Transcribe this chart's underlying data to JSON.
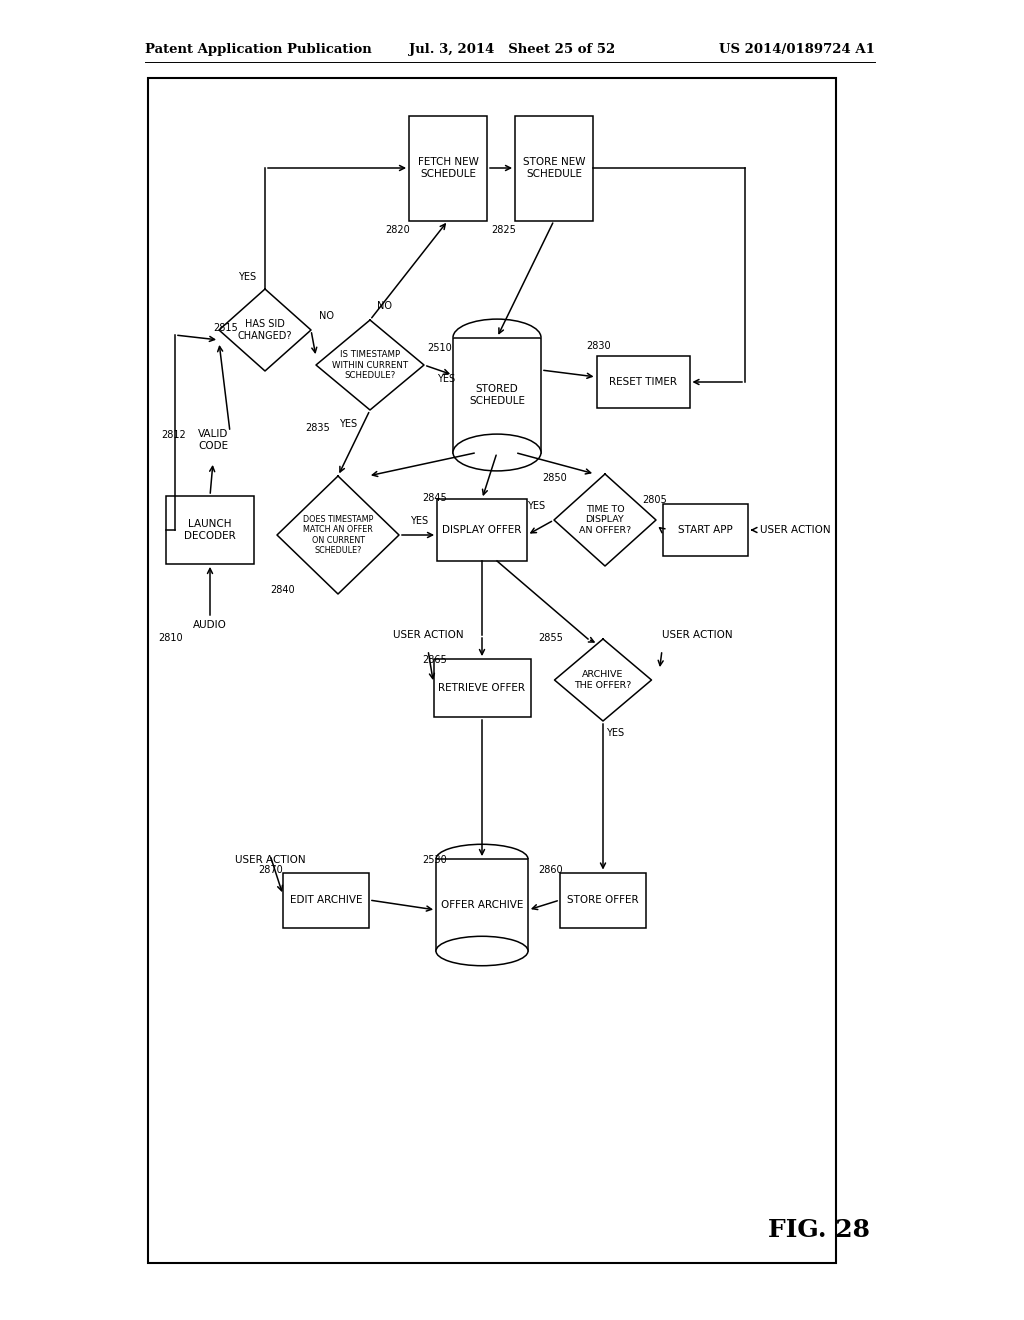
{
  "header_left": "Patent Application Publication",
  "header_center": "Jul. 3, 2014   Sheet 25 of 52",
  "header_right": "US 2014/0189724 A1",
  "fig_label": "FIG. 28",
  "bg": "#ffffff"
}
